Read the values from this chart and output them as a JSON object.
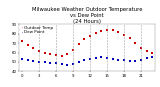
{
  "title": "Milwaukee Weather Outdoor Temperature\nvs Dew Point\n(24 Hours)",
  "title_fontsize": 3.8,
  "temp": [
    72,
    68,
    65,
    62,
    60,
    58,
    57,
    56,
    58,
    63,
    69,
    74,
    78,
    81,
    83,
    84,
    84,
    82,
    79,
    75,
    70,
    65,
    62,
    60
  ],
  "dew": [
    53,
    52,
    51,
    50,
    50,
    49,
    49,
    48,
    47,
    48,
    50,
    52,
    53,
    54,
    55,
    54,
    53,
    52,
    52,
    51,
    51,
    52,
    54,
    55
  ],
  "temp_color": "#cc0000",
  "dew_color": "#0000bb",
  "ylim": [
    40,
    90
  ],
  "yticks": [
    40,
    50,
    60,
    70,
    80,
    90
  ],
  "ytick_labels": [
    "40",
    "50",
    "60",
    "70",
    "80",
    "90"
  ],
  "xlim": [
    -0.5,
    23.5
  ],
  "xtick_positions": [
    0,
    3,
    6,
    9,
    12,
    15,
    18,
    21
  ],
  "xtick_labels": [
    "0",
    "3",
    "6",
    "9",
    "12",
    "15",
    "18",
    "21"
  ],
  "vgrid_positions": [
    3,
    6,
    9,
    12,
    15,
    18,
    21
  ],
  "grid_color": "#999999",
  "bg_color": "#ffffff",
  "marker_size": 1.5,
  "legend_labels": [
    "Outdoor Temp",
    "Dew Point"
  ],
  "legend_fontsize": 3.0
}
